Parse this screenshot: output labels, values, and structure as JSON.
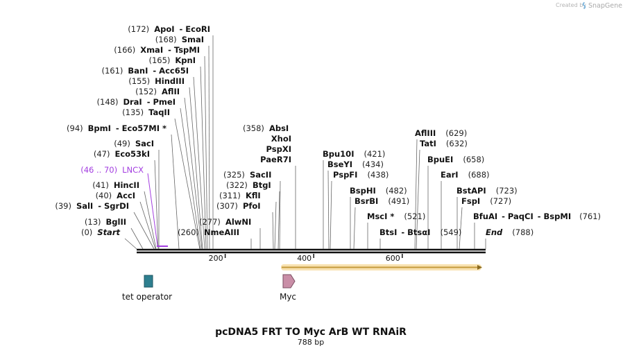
{
  "credit": {
    "prefix": "Created by",
    "brand": "SnapGene"
  },
  "title": "pcDNA5 FRT TO Myc ArB WT RNAiR",
  "subtitle": "788 bp",
  "axis": {
    "length": 788,
    "ticks": [
      200,
      400,
      600
    ]
  },
  "sites": [
    {
      "pos": "(172)",
      "names": [
        "ApoI",
        "EcoRI"
      ]
    },
    {
      "pos": "(168)",
      "names": [
        "SmaI"
      ]
    },
    {
      "pos": "(166)",
      "names": [
        "XmaI",
        "TspMI"
      ]
    },
    {
      "pos": "(165)",
      "names": [
        "KpnI"
      ]
    },
    {
      "pos": "(161)",
      "names": [
        "BanI",
        "Acc65I"
      ]
    },
    {
      "pos": "(155)",
      "names": [
        "HindIII"
      ]
    },
    {
      "pos": "(152)",
      "names": [
        "AflII"
      ]
    },
    {
      "pos": "(148)",
      "names": [
        "DraI",
        "PmeI"
      ]
    },
    {
      "pos": "(135)",
      "names": [
        "TaqII"
      ]
    },
    {
      "pos": "(94)",
      "names": [
        "BpmI",
        "Eco57MI *"
      ]
    },
    {
      "pos": "(49)",
      "names": [
        "SacI"
      ]
    },
    {
      "pos": "(47)",
      "names": [
        "Eco53kI"
      ]
    },
    {
      "pos": "(41)",
      "names": [
        "HincII"
      ]
    },
    {
      "pos": "(40)",
      "names": [
        "AccI"
      ]
    },
    {
      "pos": "(39)",
      "names": [
        "SalI",
        "SgrDI"
      ]
    },
    {
      "pos": "(13)",
      "names": [
        "BglII"
      ]
    },
    {
      "pos": "(0)",
      "names": [
        "Start"
      ]
    },
    {
      "pos": "(260)",
      "names": [
        "NmeAIII"
      ]
    },
    {
      "pos": "(277)",
      "names": [
        "AlwNI"
      ]
    },
    {
      "pos": "(307)",
      "names": [
        "PfoI"
      ]
    },
    {
      "pos": "(311)",
      "names": [
        "KflI"
      ]
    },
    {
      "pos": "(322)",
      "names": [
        "BtgI"
      ]
    },
    {
      "pos": "(325)",
      "names": [
        "SacII"
      ]
    },
    {
      "pos": "(358)",
      "names": [
        "AbsI"
      ]
    },
    {
      "pos": "",
      "names": [
        "XhoI"
      ]
    },
    {
      "pos": "",
      "names": [
        "PspXI"
      ]
    },
    {
      "pos": "",
      "names": [
        "PaeR7I"
      ]
    },
    {
      "pos": "(421)",
      "names": [
        "Bpu10I"
      ]
    },
    {
      "pos": "(434)",
      "names": [
        "BseYI"
      ]
    },
    {
      "pos": "(438)",
      "names": [
        "PspFI"
      ]
    },
    {
      "pos": "(482)",
      "names": [
        "BspHI"
      ]
    },
    {
      "pos": "(491)",
      "names": [
        "BsrBI"
      ]
    },
    {
      "pos": "(521)",
      "names": [
        "MscI *"
      ]
    },
    {
      "pos": "(549)",
      "names": [
        "BtsI",
        "BtsαI"
      ]
    },
    {
      "pos": "(629)",
      "names": [
        "AflIII"
      ]
    },
    {
      "pos": "(632)",
      "names": [
        "TatI"
      ]
    },
    {
      "pos": "(658)",
      "names": [
        "BpuEI"
      ]
    },
    {
      "pos": "(688)",
      "names": [
        "EarI"
      ]
    },
    {
      "pos": "(723)",
      "names": [
        "BstAPI"
      ]
    },
    {
      "pos": "(727)",
      "names": [
        "FspI"
      ]
    },
    {
      "pos": "(761)",
      "names": [
        "BfuAI",
        "PaqCI",
        "BspMI"
      ]
    },
    {
      "pos": "(788)",
      "names": [
        "End"
      ]
    }
  ],
  "feature_label": {
    "range": "(46 .. 70)",
    "name": "LNCX"
  },
  "features": [
    {
      "name": "tet operator",
      "color": "#2e7f8f"
    },
    {
      "name": "Myc",
      "color": "#c98ea7"
    }
  ],
  "colors": {
    "feature_purple": "#a33ee0",
    "orf_fill": "#f5c96a",
    "orf_stroke": "#c49a3c"
  }
}
